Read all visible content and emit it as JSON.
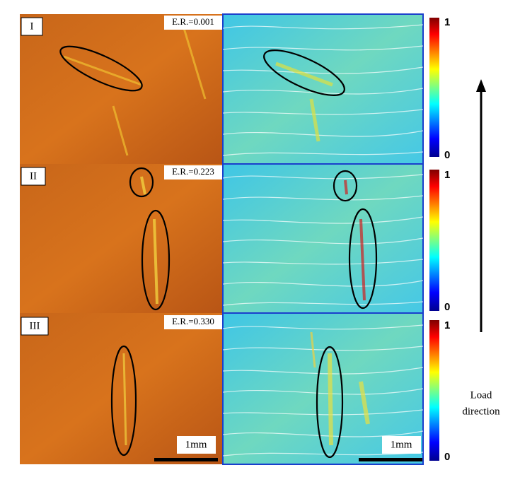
{
  "rows": [
    {
      "label": "I",
      "er": "E.R.=0.001",
      "colorbar_top": "1",
      "colorbar_bottom": "0"
    },
    {
      "label": "II",
      "er": "E.R.=0.223",
      "colorbar_top": "1",
      "colorbar_bottom": "0"
    },
    {
      "label": "III",
      "er": "E.R.=0.330",
      "colorbar_top": "1",
      "colorbar_bottom": "0"
    }
  ],
  "scale_bars": {
    "left": "1mm",
    "right": "1mm"
  },
  "load_direction": {
    "line1": "Load",
    "line2": "direction"
  }
}
